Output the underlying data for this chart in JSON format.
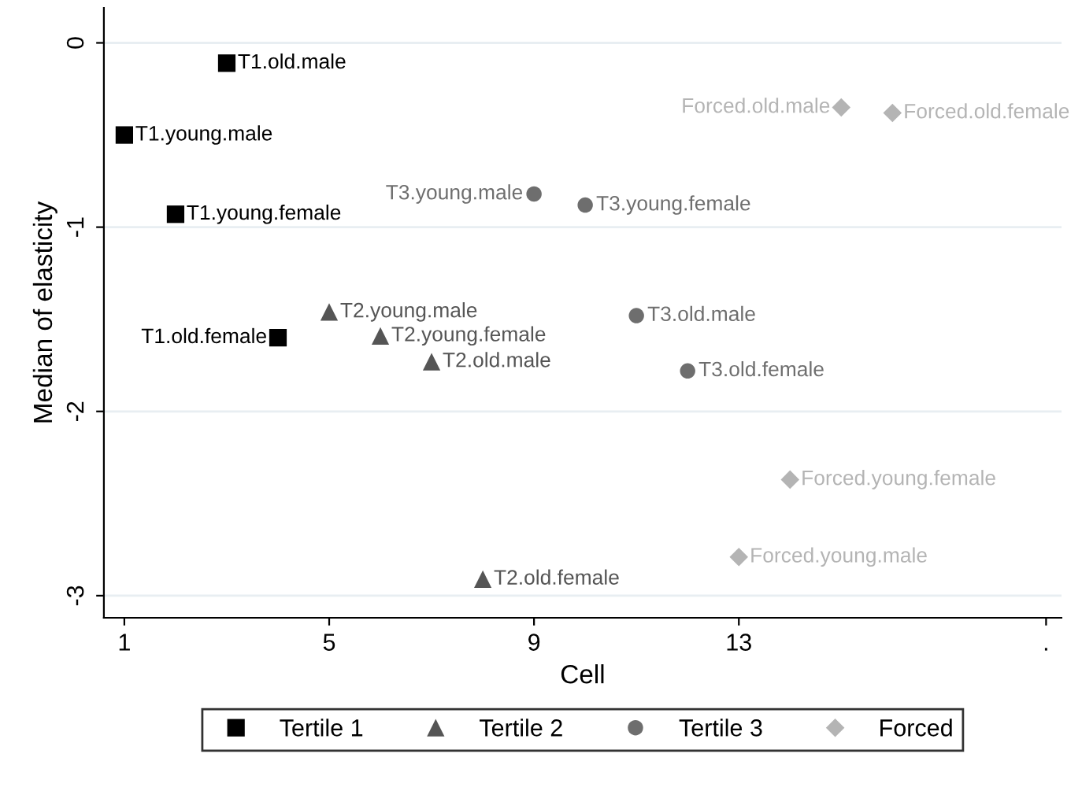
{
  "chart_data": {
    "type": "scatter",
    "xlabel": "Cell",
    "ylabel": "Median of elasticity",
    "xlim": [
      0.6,
      19.3
    ],
    "xticks": [
      1,
      5,
      9,
      13,
      {
        "value": 19,
        "label": "."
      }
    ],
    "ylim": [
      -3.12,
      0.19
    ],
    "yticks": [
      0,
      -1,
      -2,
      -3
    ],
    "grid": "y",
    "legend": "bottom",
    "series": [
      {
        "name": "Tertile 1",
        "color": "#000000",
        "marker": "square",
        "x": [
          1,
          2,
          3,
          4
        ],
        "values": [
          -0.5,
          -0.93,
          -0.11,
          -1.6
        ],
        "value_labels": [
          "T1.young.male",
          "T1.young.female",
          "T1.old.male",
          "T1.old.female"
        ]
      },
      {
        "name": "Tertile 2",
        "color": "#555555",
        "marker": "triangle",
        "x": [
          5,
          6,
          7,
          8
        ],
        "values": [
          -1.46,
          -1.59,
          -1.73,
          -2.91
        ],
        "value_labels": [
          "T2.young.male",
          "T2.young.female",
          "T2.old.male",
          "T2.old.female"
        ]
      },
      {
        "name": "Tertile 3",
        "color": "#6e6e6e",
        "marker": "circle",
        "x": [
          9,
          10,
          11,
          12
        ],
        "values": [
          -0.82,
          -0.88,
          -1.48,
          -1.78
        ],
        "value_labels": [
          "T3.young.male",
          "T3.young.female",
          "T3.old.male",
          "T3.old.female"
        ]
      },
      {
        "name": "Forced",
        "color": "#b4b4b4",
        "marker": "diamond",
        "x": [
          13,
          14,
          15,
          16
        ],
        "values": [
          -2.79,
          -2.37,
          -0.35,
          -0.38
        ],
        "value_labels": [
          "Forced.young.male",
          "Forced.young.female",
          "Forced.old.male",
          "Forced.old.female"
        ]
      }
    ]
  }
}
